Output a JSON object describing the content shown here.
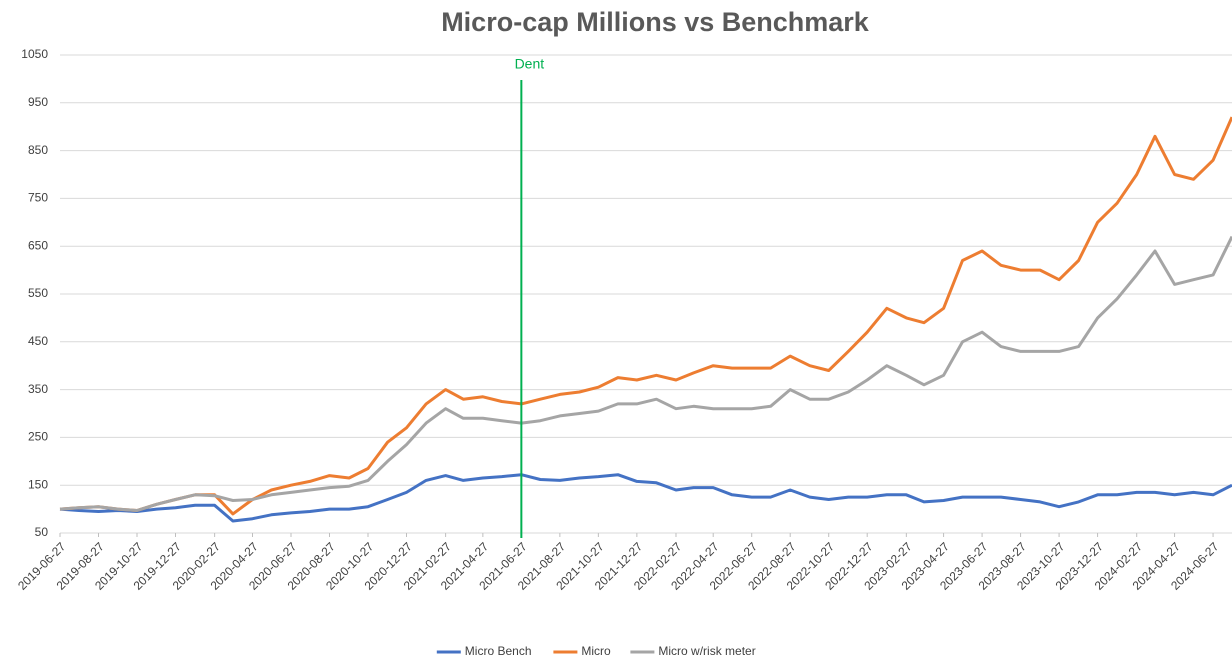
{
  "chart_data": {
    "type": "line",
    "title": "Micro-cap Millions vs Benchmark",
    "x": [
      "2019-06-27",
      "2019-07-27",
      "2019-08-27",
      "2019-09-27",
      "2019-10-27",
      "2019-11-27",
      "2019-12-27",
      "2020-01-27",
      "2020-02-27",
      "2020-03-27",
      "2020-04-27",
      "2020-05-27",
      "2020-06-27",
      "2020-07-27",
      "2020-08-27",
      "2020-09-27",
      "2020-10-27",
      "2020-11-27",
      "2020-12-27",
      "2021-01-27",
      "2021-02-27",
      "2021-03-27",
      "2021-04-27",
      "2021-05-27",
      "2021-06-27",
      "2021-07-27",
      "2021-08-27",
      "2021-09-27",
      "2021-10-27",
      "2021-11-27",
      "2021-12-27",
      "2022-01-27",
      "2022-02-27",
      "2022-03-27",
      "2022-04-27",
      "2022-05-27",
      "2022-06-27",
      "2022-07-27",
      "2022-08-27",
      "2022-09-27",
      "2022-10-27",
      "2022-11-27",
      "2022-12-27",
      "2023-01-27",
      "2023-02-27",
      "2023-03-27",
      "2023-04-27",
      "2023-05-27",
      "2023-06-27",
      "2023-07-27",
      "2023-08-27",
      "2023-09-27",
      "2023-10-27",
      "2023-11-27",
      "2023-12-27",
      "2024-01-27",
      "2024-02-27",
      "2024-03-27",
      "2024-04-27",
      "2024-05-27",
      "2024-06-27",
      "2024-07-27"
    ],
    "series": [
      {
        "name": "Micro Bench",
        "color": "#4472c4",
        "values": [
          100,
          97,
          95,
          97,
          95,
          100,
          103,
          108,
          108,
          75,
          80,
          88,
          92,
          95,
          100,
          100,
          105,
          120,
          135,
          160,
          170,
          160,
          165,
          168,
          172,
          162,
          160,
          165,
          168,
          172,
          158,
          155,
          140,
          145,
          145,
          130,
          125,
          125,
          140,
          125,
          120,
          125,
          125,
          130,
          130,
          115,
          118,
          125,
          125,
          125,
          120,
          115,
          105,
          115,
          130,
          130,
          135,
          135,
          130,
          135,
          130,
          150
        ]
      },
      {
        "name": "Micro",
        "color": "#ed7d31",
        "values": [
          100,
          103,
          105,
          100,
          97,
          110,
          120,
          130,
          130,
          90,
          120,
          140,
          150,
          158,
          170,
          165,
          185,
          240,
          270,
          320,
          350,
          330,
          335,
          325,
          320,
          330,
          340,
          345,
          355,
          375,
          370,
          380,
          370,
          385,
          400,
          395,
          395,
          395,
          420,
          400,
          390,
          430,
          470,
          520,
          500,
          490,
          520,
          620,
          640,
          610,
          600,
          600,
          580,
          620,
          700,
          740,
          800,
          880,
          800,
          790,
          830,
          920
        ]
      },
      {
        "name": "Micro w/risk meter",
        "color": "#a5a5a5",
        "values": [
          100,
          103,
          105,
          100,
          97,
          110,
          120,
          130,
          128,
          118,
          120,
          130,
          135,
          140,
          145,
          148,
          160,
          200,
          235,
          280,
          310,
          290,
          290,
          285,
          280,
          285,
          295,
          300,
          305,
          320,
          320,
          330,
          310,
          315,
          310,
          310,
          310,
          315,
          350,
          330,
          330,
          345,
          370,
          400,
          380,
          360,
          380,
          450,
          470,
          440,
          430,
          430,
          430,
          440,
          500,
          540,
          590,
          640,
          570,
          580,
          590,
          670
        ]
      }
    ],
    "xlim": [
      "2019-06-27",
      "2024-07-27"
    ],
    "xticks": [
      "2019-06-27",
      "2019-08-27",
      "2019-10-27",
      "2019-12-27",
      "2020-02-27",
      "2020-04-27",
      "2020-06-27",
      "2020-08-27",
      "2020-10-27",
      "2020-12-27",
      "2021-02-27",
      "2021-04-27",
      "2021-06-27",
      "2021-08-27",
      "2021-10-27",
      "2021-12-27",
      "2022-02-27",
      "2022-04-27",
      "2022-06-27",
      "2022-08-27",
      "2022-10-27",
      "2022-12-27",
      "2023-02-27",
      "2023-04-27",
      "2023-06-27",
      "2023-08-27",
      "2023-10-27",
      "2023-12-27",
      "2024-02-27",
      "2024-04-27",
      "2024-06-27"
    ],
    "ylim": [
      50,
      1050
    ],
    "yticks": [
      50,
      150,
      250,
      350,
      450,
      550,
      650,
      750,
      850,
      950,
      1050
    ],
    "grid": true,
    "legend": "bottom",
    "annotations": [
      {
        "x": "2021-06-27",
        "text": "Dent",
        "color": "#00b050"
      }
    ]
  }
}
